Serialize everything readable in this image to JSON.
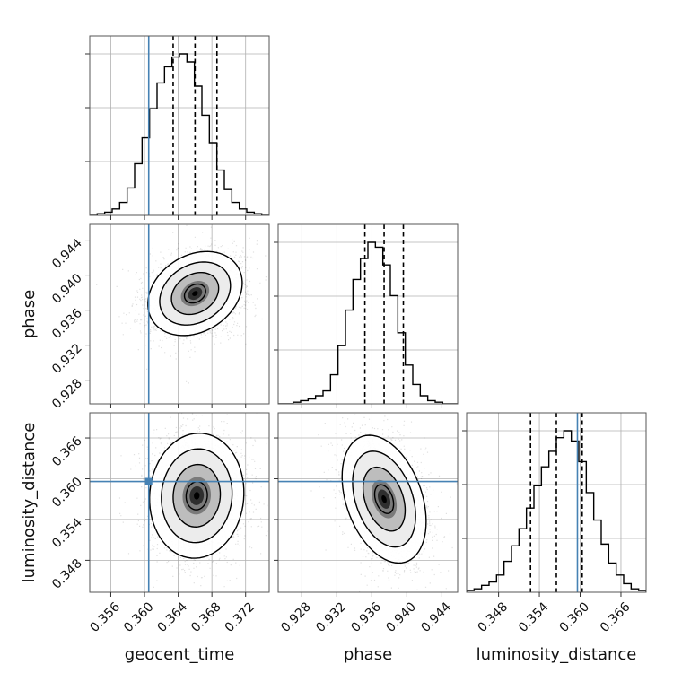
{
  "chart_data": {
    "type": "corner",
    "parameters": [
      "geocent_time",
      "phase",
      "luminosity_distance"
    ],
    "axis_labels": [
      "geocent_time",
      "phase",
      "luminosity_distance"
    ],
    "ranges": {
      "geocent_time": [
        0.3535,
        0.3748
      ],
      "phase": [
        0.9253,
        0.9458
      ],
      "luminosity_distance": [
        0.3433,
        0.3697
      ]
    },
    "ticks": {
      "geocent_time": [
        "0.356",
        "0.360",
        "0.364",
        "0.368",
        "0.372"
      ],
      "phase": [
        "0.928",
        "0.932",
        "0.936",
        "0.940",
        "0.944"
      ],
      "luminosity_distance": [
        "0.348",
        "0.354",
        "0.360",
        "0.366"
      ]
    },
    "truths": {
      "geocent_time": 0.3605,
      "phase": null,
      "luminosity_distance": 0.3596
    },
    "quantiles": {
      "geocent_time": [
        0.3634,
        0.366,
        0.3686
      ],
      "phase": [
        0.9352,
        0.9374,
        0.9396
      ],
      "luminosity_distance": [
        0.3527,
        0.3565,
        0.3603
      ]
    },
    "histograms": {
      "geocent_time": {
        "edges_range": [
          0.3535,
          0.3748
        ],
        "bins": 24,
        "counts": [
          0,
          1,
          2,
          4,
          8,
          17,
          32,
          48,
          66,
          82,
          92,
          98,
          100,
          95,
          80,
          62,
          45,
          28,
          16,
          8,
          4,
          2,
          1,
          0
        ]
      },
      "phase": {
        "edges_range": [
          0.9253,
          0.9458
        ],
        "bins": 24,
        "counts": [
          0,
          0,
          1,
          2,
          3,
          5,
          8,
          18,
          36,
          58,
          77,
          90,
          100,
          97,
          86,
          67,
          44,
          24,
          12,
          5,
          2,
          1,
          0,
          0
        ]
      },
      "luminosity_distance": {
        "edges_range": [
          0.3433,
          0.3697
        ],
        "bins": 24,
        "counts": [
          1,
          2,
          4,
          6,
          10,
          18,
          27,
          37,
          49,
          62,
          73,
          82,
          90,
          94,
          88,
          76,
          58,
          42,
          28,
          17,
          10,
          5,
          2,
          1
        ]
      }
    },
    "joint": [
      {
        "x": "geocent_time",
        "y": "phase",
        "mean": [
          0.366,
          0.9379
        ],
        "sd": [
          0.0028,
          0.0024
        ],
        "corr": 0.25
      },
      {
        "x": "geocent_time",
        "y": "luminosity_distance",
        "mean": [
          0.3662,
          0.3575
        ],
        "sd": [
          0.0028,
          0.0046
        ],
        "corr": 0.05
      },
      {
        "x": "phase",
        "y": "luminosity_distance",
        "mean": [
          0.9374,
          0.357
        ],
        "sd": [
          0.0024,
          0.0047
        ],
        "corr": -0.35
      }
    ],
    "contour_levels_sigma": [
      0.5,
      1.0,
      1.5,
      2.0
    ],
    "grid": true
  }
}
